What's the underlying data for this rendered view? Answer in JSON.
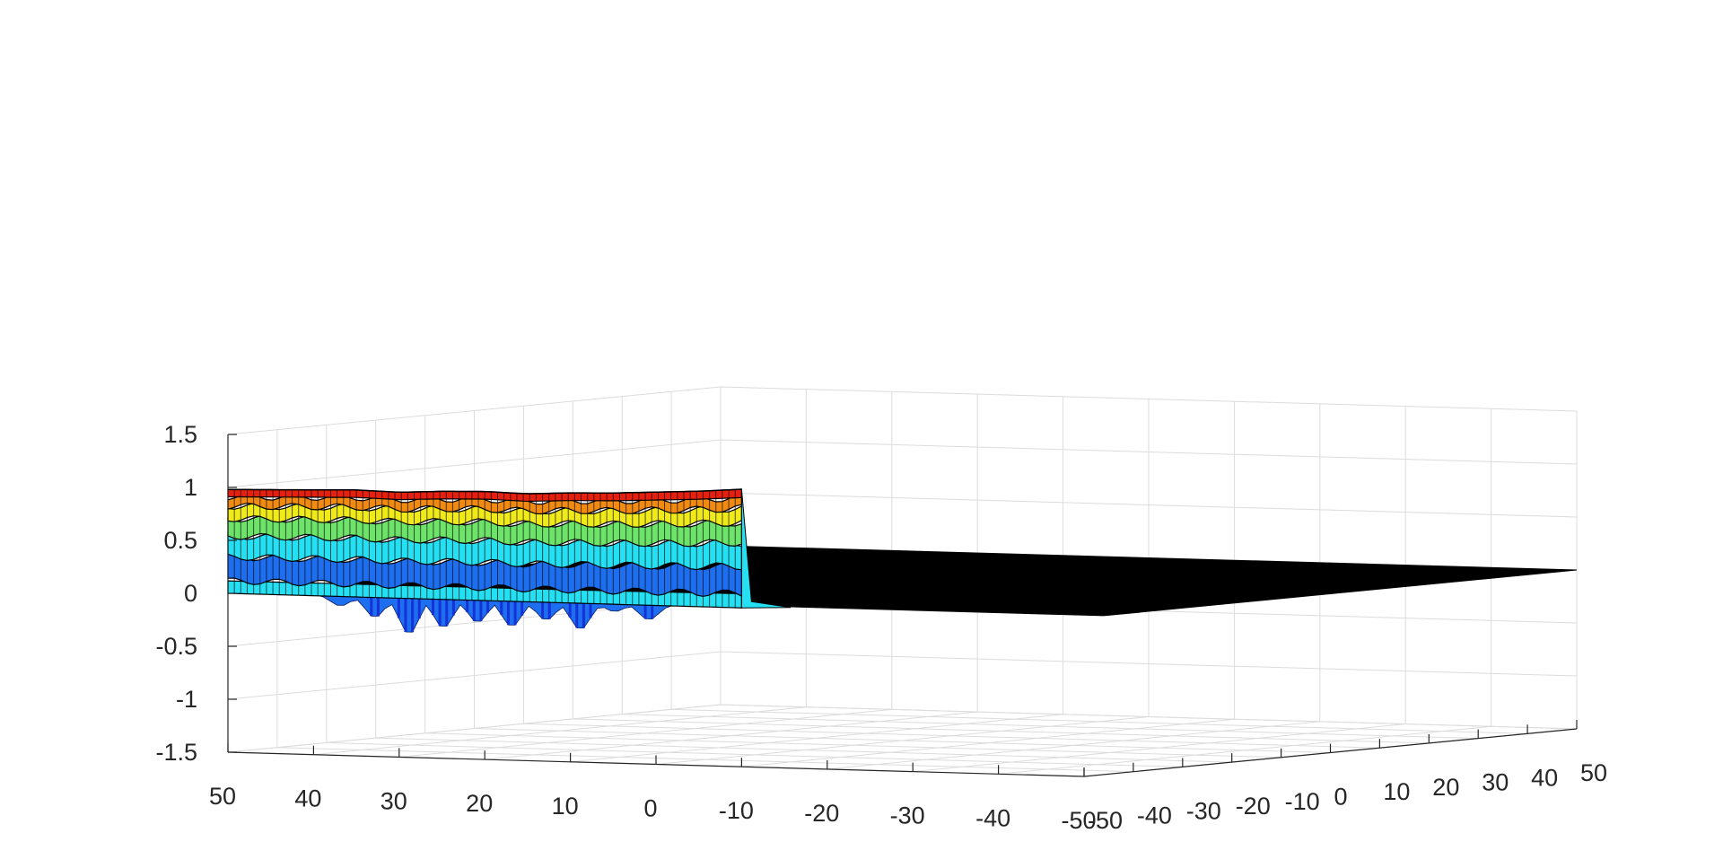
{
  "chart_data": {
    "type": "surface3d",
    "title": "",
    "xlabel": "",
    "ylabel": "",
    "zlabel": "",
    "grid": true,
    "colormap": "jet",
    "edge_color": "#000000",
    "x_range": [
      -50,
      50
    ],
    "y_range": [
      -50,
      50
    ],
    "z_range": [
      -1.5,
      1.5
    ],
    "x_ticks": [
      50,
      40,
      30,
      20,
      10,
      0,
      -10,
      -20,
      -30,
      -40,
      -50
    ],
    "x_tick_labels": [
      "50",
      "40",
      "30",
      "20",
      "10",
      "0",
      "-10",
      "-20",
      "-30",
      "-40",
      "-50"
    ],
    "y_ticks": [
      -50,
      -40,
      -30,
      -20,
      -10,
      0,
      10,
      20,
      30,
      40,
      50
    ],
    "y_tick_labels": [
      "-50",
      "-40",
      "-30",
      "-20",
      "-10",
      "0",
      "10",
      "20",
      "30",
      "40",
      "50"
    ],
    "z_ticks": [
      1.5,
      1,
      0.5,
      0,
      -0.5,
      -1,
      -1.5
    ],
    "z_tick_labels": [
      "1.5",
      "1",
      "0.5",
      "0",
      "-0.5",
      "-1",
      "-1.5"
    ],
    "surface": {
      "ridge_edge_y": -50,
      "ridge_extent_y": [
        -50,
        -47
      ],
      "top_value": 1,
      "mean_value_rest": 0,
      "dip_min_value": -0.35,
      "edge_profile_x": [
        50,
        45,
        40,
        35,
        30,
        25,
        20,
        15,
        10,
        5,
        0,
        -5,
        -10
      ],
      "edge_profile_z": [
        0.98,
        0.99,
        1.0,
        1.01,
        1.0,
        1.02,
        1.03,
        1.02,
        1.04,
        1.05,
        1.07,
        1.09,
        1.12
      ],
      "dip_profile_x": [
        38,
        34,
        30,
        26,
        22,
        18,
        14,
        10,
        6,
        2
      ],
      "dip_profile_z": [
        -0.1,
        -0.2,
        -0.35,
        -0.28,
        -0.22,
        -0.25,
        -0.18,
        -0.26,
        -0.08,
        -0.15
      ]
    },
    "colors": {
      "red": "#e5200f",
      "orange": "#f08a10",
      "yellow": "#f0ea1a",
      "green": "#6ee36a",
      "cyan": "#25e0f2",
      "blue": "#1e6ff0",
      "deep_blue": "#1432d8",
      "grid": "#dcdcdc",
      "axis": "#262626"
    }
  }
}
